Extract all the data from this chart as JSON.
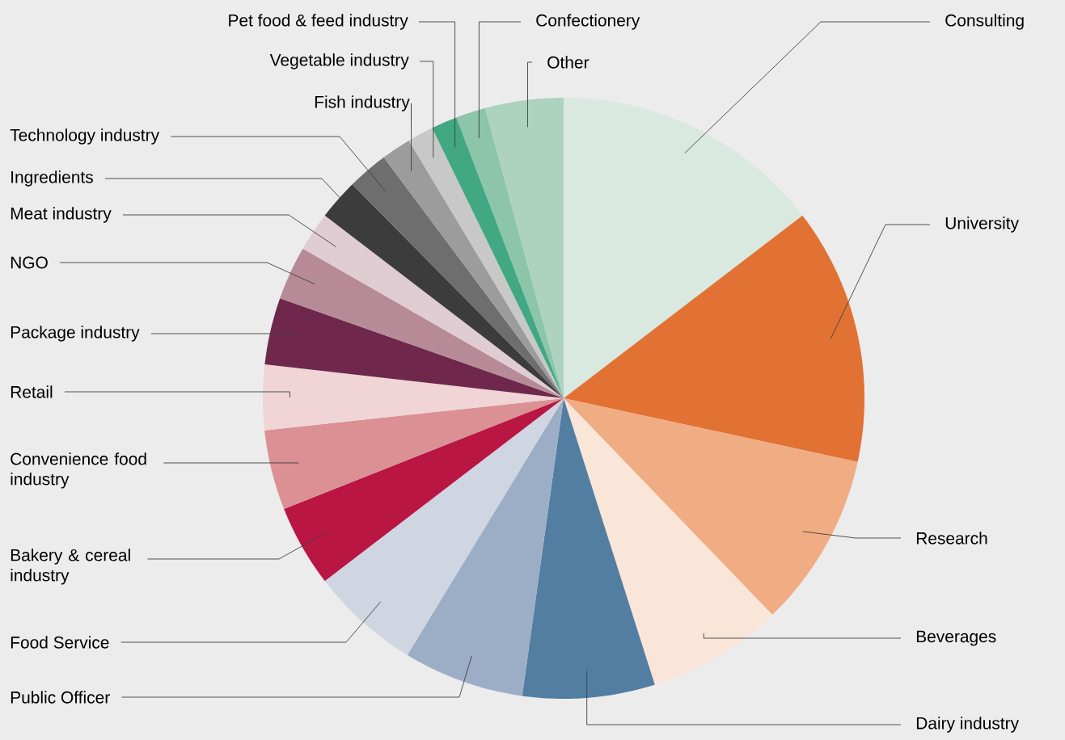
{
  "chart_data": {
    "type": "pie",
    "categories": [
      "Consulting",
      "University",
      "Research",
      "Beverages",
      "Dairy industry",
      "Public Officer",
      "Food Service",
      "Bakery & cereal industry",
      "Convenience food industry",
      "Retail",
      "Package industry",
      "NGO",
      "Meat industry",
      "Ingredients",
      "Technology industry",
      "Fish industry",
      "Vegetable industry",
      "Pet food & feed industry",
      "Confectionery",
      "Other"
    ],
    "values": [
      14.6,
      13.8,
      9.4,
      7.3,
      7.1,
      6.5,
      5.9,
      4.4,
      4.3,
      3.5,
      3.6,
      2.9,
      2.1,
      2.2,
      2.2,
      1.6,
      1.4,
      1.4,
      1.6,
      4.2
    ],
    "colors": [
      "#d9e9e0",
      "#e27233",
      "#f0ac83",
      "#fae5d9",
      "#527ea1",
      "#9caec6",
      "#cfd6e2",
      "#b91644",
      "#db9093",
      "#f0d4d6",
      "#6f284c",
      "#b68b97",
      "#e0cdd3",
      "#3c3c3c",
      "#6e6e6e",
      "#9c9c9c",
      "#c8c8c8",
      "#41a883",
      "#8cc5aa",
      "#add3c0"
    ]
  }
}
